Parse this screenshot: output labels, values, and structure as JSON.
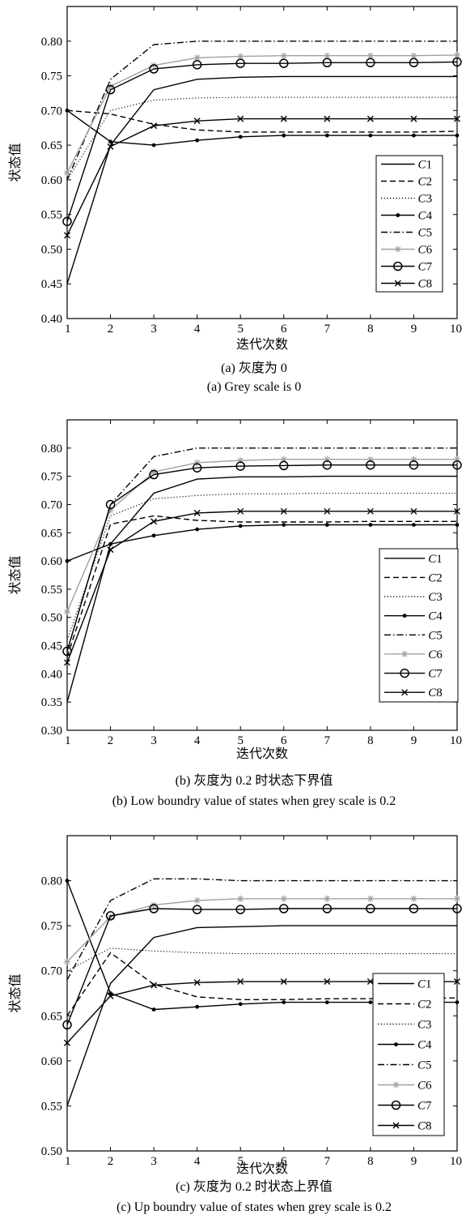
{
  "chart_data": [
    {
      "type": "line",
      "ylabel": "状态值",
      "xlabel": "迭代次数",
      "caption_cn": "(a) 灰度为 0",
      "caption_en": "(a) Grey scale is 0",
      "xlim": [
        1,
        10
      ],
      "ylim": [
        0.4,
        0.85
      ],
      "xticks": [
        "1",
        "2",
        "3",
        "4",
        "5",
        "6",
        "7",
        "8",
        "9",
        "10"
      ],
      "yticks": [
        "0.40",
        "0.45",
        "0.50",
        "0.55",
        "0.60",
        "0.65",
        "0.70",
        "0.75",
        "0.80"
      ],
      "legend_position": "bottom-right",
      "x": [
        1,
        2,
        3,
        4,
        5,
        6,
        7,
        8,
        9,
        10
      ],
      "series": [
        {
          "name": "C1",
          "style": "solid",
          "marker": "none",
          "color": "#000000",
          "values": [
            0.45,
            0.65,
            0.73,
            0.745,
            0.748,
            0.749,
            0.749,
            0.749,
            0.749,
            0.749
          ]
        },
        {
          "name": "C2",
          "style": "dashed",
          "marker": "none",
          "color": "#000000",
          "values": [
            0.7,
            0.695,
            0.68,
            0.672,
            0.669,
            0.669,
            0.669,
            0.669,
            0.669,
            0.67
          ]
        },
        {
          "name": "C3",
          "style": "dotted",
          "marker": "none",
          "color": "#000000",
          "values": [
            0.6,
            0.7,
            0.715,
            0.718,
            0.719,
            0.719,
            0.719,
            0.719,
            0.719,
            0.719
          ]
        },
        {
          "name": "C4",
          "style": "solid",
          "marker": "dot",
          "color": "#000000",
          "values": [
            0.7,
            0.655,
            0.65,
            0.657,
            0.662,
            0.664,
            0.664,
            0.664,
            0.664,
            0.664
          ]
        },
        {
          "name": "C5",
          "style": "dashdot",
          "marker": "none",
          "color": "#000000",
          "values": [
            0.6,
            0.745,
            0.795,
            0.8,
            0.8,
            0.8,
            0.8,
            0.8,
            0.8,
            0.8
          ]
        },
        {
          "name": "C6",
          "style": "solid",
          "marker": "star",
          "color": "#a0a0a0",
          "values": [
            0.61,
            0.735,
            0.765,
            0.776,
            0.778,
            0.779,
            0.779,
            0.779,
            0.779,
            0.78
          ]
        },
        {
          "name": "C7",
          "style": "solid",
          "marker": "circle",
          "color": "#000000",
          "values": [
            0.54,
            0.73,
            0.76,
            0.766,
            0.768,
            0.768,
            0.769,
            0.769,
            0.769,
            0.77
          ]
        },
        {
          "name": "C8",
          "style": "solid",
          "marker": "x",
          "color": "#000000",
          "values": [
            0.52,
            0.648,
            0.678,
            0.685,
            0.688,
            0.688,
            0.688,
            0.688,
            0.688,
            0.688
          ]
        }
      ]
    },
    {
      "type": "line",
      "ylabel": "状态值",
      "xlabel": "迭代次数",
      "caption_cn": "(b) 灰度为 0.2 时状态下界值",
      "caption_en": "(b) Low boundry value of states when grey scale is 0.2",
      "xlim": [
        1,
        10
      ],
      "ylim": [
        0.3,
        0.85
      ],
      "xticks": [
        "1",
        "2",
        "3",
        "4",
        "5",
        "6",
        "7",
        "8",
        "9",
        "10"
      ],
      "yticks": [
        "0.30",
        "0.35",
        "0.40",
        "0.45",
        "0.50",
        "0.55",
        "0.60",
        "0.65",
        "0.70",
        "0.75",
        "0.80"
      ],
      "legend_position": "bottom-right",
      "x": [
        1,
        2,
        3,
        4,
        5,
        6,
        7,
        8,
        9,
        10
      ],
      "series": [
        {
          "name": "C1",
          "style": "solid",
          "marker": "none",
          "color": "#000000",
          "values": [
            0.35,
            0.63,
            0.72,
            0.745,
            0.749,
            0.749,
            0.75,
            0.75,
            0.75,
            0.75
          ]
        },
        {
          "name": "C2",
          "style": "dashed",
          "marker": "none",
          "color": "#000000",
          "values": [
            0.43,
            0.665,
            0.68,
            0.672,
            0.669,
            0.669,
            0.669,
            0.67,
            0.67,
            0.67
          ]
        },
        {
          "name": "C3",
          "style": "dotted",
          "marker": "none",
          "color": "#000000",
          "values": [
            0.46,
            0.68,
            0.71,
            0.716,
            0.719,
            0.719,
            0.72,
            0.72,
            0.72,
            0.72
          ]
        },
        {
          "name": "C4",
          "style": "solid",
          "marker": "dot",
          "color": "#000000",
          "values": [
            0.6,
            0.63,
            0.645,
            0.656,
            0.662,
            0.664,
            0.664,
            0.664,
            0.664,
            0.664
          ]
        },
        {
          "name": "C5",
          "style": "dashdot",
          "marker": "none",
          "color": "#000000",
          "values": [
            0.44,
            0.7,
            0.785,
            0.8,
            0.8,
            0.8,
            0.8,
            0.8,
            0.8,
            0.8
          ]
        },
        {
          "name": "C6",
          "style": "solid",
          "marker": "star",
          "color": "#a0a0a0",
          "values": [
            0.51,
            0.69,
            0.758,
            0.774,
            0.778,
            0.78,
            0.78,
            0.78,
            0.78,
            0.78
          ]
        },
        {
          "name": "C7",
          "style": "solid",
          "marker": "circle",
          "color": "#000000",
          "values": [
            0.44,
            0.7,
            0.753,
            0.765,
            0.768,
            0.769,
            0.77,
            0.77,
            0.77,
            0.77
          ]
        },
        {
          "name": "C8",
          "style": "solid",
          "marker": "x",
          "color": "#000000",
          "values": [
            0.42,
            0.62,
            0.67,
            0.685,
            0.688,
            0.688,
            0.688,
            0.688,
            0.688,
            0.688
          ]
        }
      ]
    },
    {
      "type": "line",
      "ylabel": "状态值",
      "xlabel": "迭代次数",
      "caption_cn": "(c) 灰度为 0.2 时状态上界值",
      "caption_en": "(c) Up boundry value of states when grey scale is 0.2",
      "xlim": [
        1,
        10
      ],
      "ylim": [
        0.5,
        0.85
      ],
      "xticks": [
        "1",
        "2",
        "3",
        "4",
        "5",
        "6",
        "7",
        "8",
        "9",
        "10"
      ],
      "yticks": [
        "0.50",
        "0.55",
        "0.60",
        "0.65",
        "0.70",
        "0.75",
        "0.80"
      ],
      "legend_position": "bottom-right",
      "x": [
        1,
        2,
        3,
        4,
        5,
        6,
        7,
        8,
        9,
        10
      ],
      "series": [
        {
          "name": "C1",
          "style": "solid",
          "marker": "none",
          "color": "#000000",
          "values": [
            0.55,
            0.686,
            0.737,
            0.748,
            0.749,
            0.75,
            0.75,
            0.75,
            0.75,
            0.75
          ]
        },
        {
          "name": "C2",
          "style": "dashed",
          "marker": "none",
          "color": "#000000",
          "values": [
            0.65,
            0.72,
            0.685,
            0.671,
            0.668,
            0.668,
            0.669,
            0.669,
            0.669,
            0.67
          ]
        },
        {
          "name": "C3",
          "style": "dotted",
          "marker": "none",
          "color": "#000000",
          "values": [
            0.7,
            0.725,
            0.722,
            0.72,
            0.719,
            0.719,
            0.719,
            0.719,
            0.719,
            0.719
          ]
        },
        {
          "name": "C4",
          "style": "solid",
          "marker": "dot",
          "color": "#000000",
          "values": [
            0.8,
            0.675,
            0.657,
            0.66,
            0.663,
            0.665,
            0.665,
            0.665,
            0.665,
            0.665
          ]
        },
        {
          "name": "C5",
          "style": "dashdot",
          "marker": "none",
          "color": "#000000",
          "values": [
            0.69,
            0.778,
            0.802,
            0.802,
            0.8,
            0.8,
            0.8,
            0.8,
            0.8,
            0.8
          ]
        },
        {
          "name": "C6",
          "style": "solid",
          "marker": "star",
          "color": "#a0a0a0",
          "values": [
            0.71,
            0.76,
            0.773,
            0.778,
            0.78,
            0.78,
            0.78,
            0.78,
            0.78,
            0.78
          ]
        },
        {
          "name": "C7",
          "style": "solid",
          "marker": "circle",
          "color": "#000000",
          "values": [
            0.64,
            0.761,
            0.769,
            0.768,
            0.768,
            0.769,
            0.769,
            0.769,
            0.769,
            0.769
          ]
        },
        {
          "name": "C8",
          "style": "solid",
          "marker": "x",
          "color": "#000000",
          "values": [
            0.62,
            0.672,
            0.684,
            0.687,
            0.688,
            0.688,
            0.688,
            0.688,
            0.688,
            0.688
          ]
        }
      ]
    }
  ]
}
